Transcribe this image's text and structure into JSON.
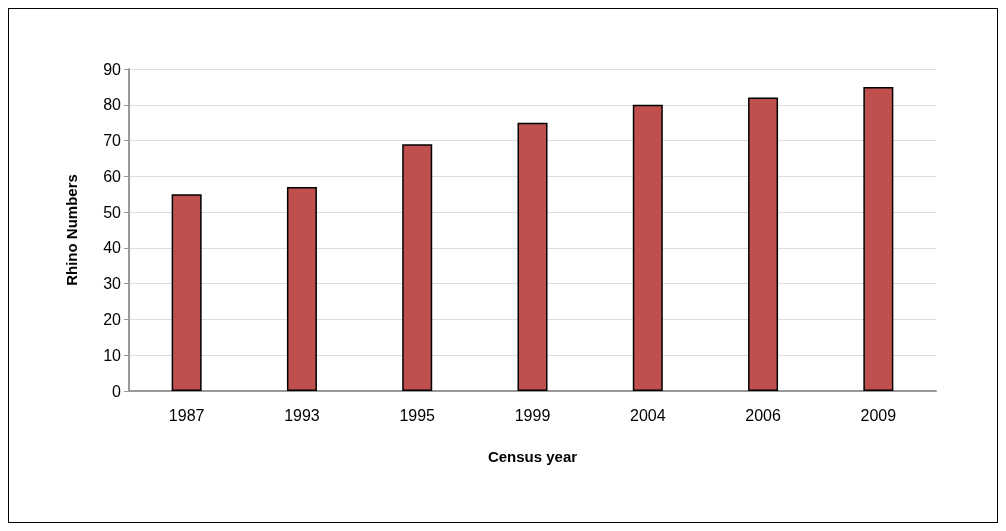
{
  "chart_data": {
    "type": "bar",
    "xlabel": "Census year",
    "ylabel": "Rhino Numbers",
    "categories": [
      "1987",
      "1993",
      "1995",
      "1999",
      "2004",
      "2006",
      "2009"
    ],
    "values": [
      55,
      57,
      69,
      75,
      80,
      82,
      85
    ],
    "color": "#c0504d",
    "ylim": [
      0,
      90
    ],
    "yticks": [
      0,
      10,
      20,
      30,
      40,
      50,
      60,
      70,
      80,
      90
    ],
    "grid": "y"
  }
}
